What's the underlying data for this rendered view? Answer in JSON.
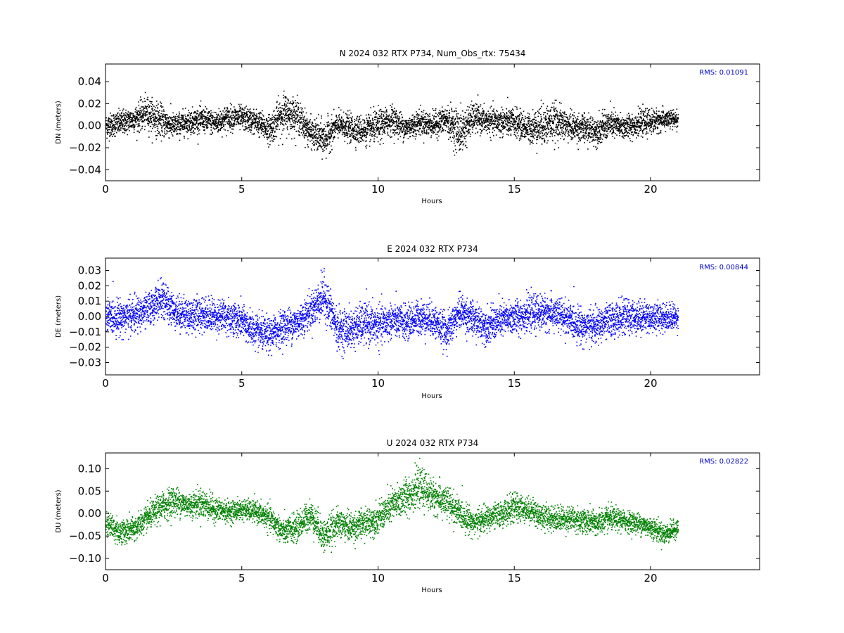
{
  "chart_data": [
    {
      "type": "scatter",
      "title": "N 2024 032 RTX  P734, Num_Obs_rtx: 75434",
      "xlabel": "Hours",
      "ylabel": "DN (meters)",
      "xlim": [
        0,
        24
      ],
      "ylim": [
        -0.05,
        0.056
      ],
      "xticks": [
        0,
        5,
        10,
        15,
        20
      ],
      "yticks": [
        -0.04,
        -0.02,
        0.0,
        0.02,
        0.04
      ],
      "ytick_labels": [
        "−0.04",
        "−0.02",
        "0.00",
        "0.02",
        "0.04"
      ],
      "color": "#000000",
      "rms_label": "RMS:  0.01091",
      "rms_color": "#0000cc",
      "grid": false,
      "series": [
        {
          "x": [
            0,
            0.5,
            1.0,
            1.5,
            2.0,
            2.5,
            3.0,
            3.5,
            4.0,
            4.5,
            5.0,
            5.5,
            6.0,
            6.5,
            7.0,
            7.5,
            8.0,
            8.5,
            9.0,
            9.5,
            10.0,
            10.5,
            11.0,
            11.5,
            12.0,
            12.5,
            13.0,
            13.5,
            14.0,
            14.5,
            15.0,
            15.5,
            16.0,
            16.5,
            17.0,
            17.5,
            18.0,
            18.5,
            19.0,
            19.5,
            20.0,
            20.5,
            21.0
          ],
          "center": [
            0.0,
            0.003,
            0.006,
            0.012,
            0.005,
            0.0,
            0.004,
            0.006,
            0.003,
            0.008,
            0.007,
            0.004,
            -0.003,
            0.012,
            0.01,
            -0.006,
            -0.012,
            0.001,
            -0.002,
            -0.004,
            0.0,
            0.006,
            -0.002,
            0.004,
            0.001,
            0.006,
            -0.006,
            0.008,
            0.004,
            0.004,
            0.003,
            -0.002,
            0.001,
            0.004,
            0.0,
            -0.002,
            -0.004,
            0.002,
            -0.001,
            0.002,
            0.004,
            0.006,
            0.006
          ],
          "spread": [
            0.012,
            0.012,
            0.012,
            0.016,
            0.016,
            0.012,
            0.012,
            0.012,
            0.012,
            0.012,
            0.012,
            0.012,
            0.014,
            0.02,
            0.016,
            0.014,
            0.018,
            0.012,
            0.014,
            0.014,
            0.016,
            0.014,
            0.012,
            0.012,
            0.012,
            0.014,
            0.022,
            0.014,
            0.012,
            0.014,
            0.014,
            0.014,
            0.02,
            0.018,
            0.014,
            0.014,
            0.014,
            0.014,
            0.012,
            0.012,
            0.012,
            0.01,
            0.008
          ]
        }
      ]
    },
    {
      "type": "scatter",
      "title": "E 2024 032 RTX  P734",
      "xlabel": "Hours",
      "ylabel": "DE (meters)",
      "xlim": [
        0,
        24
      ],
      "ylim": [
        -0.038,
        0.038
      ],
      "xticks": [
        0,
        5,
        10,
        15,
        20
      ],
      "yticks": [
        -0.03,
        -0.02,
        -0.01,
        0.0,
        0.01,
        0.02,
        0.03
      ],
      "ytick_labels": [
        "−0.03",
        "−0.02",
        "−0.01",
        "0.00",
        "0.01",
        "0.02",
        "0.03"
      ],
      "color": "#0000ff",
      "rms_label": "RMS:  0.00844",
      "rms_color": "#0000cc",
      "grid": false,
      "series": [
        {
          "x": [
            0,
            0.5,
            1.0,
            1.5,
            2.0,
            2.5,
            3.0,
            3.5,
            4.0,
            4.5,
            5.0,
            5.5,
            6.0,
            6.5,
            7.0,
            7.5,
            8.0,
            8.5,
            9.0,
            9.5,
            10.0,
            10.5,
            11.0,
            11.5,
            12.0,
            12.5,
            13.0,
            13.5,
            14.0,
            14.5,
            15.0,
            15.5,
            16.0,
            16.5,
            17.0,
            17.5,
            18.0,
            18.5,
            19.0,
            19.5,
            20.0,
            20.5,
            21.0
          ],
          "center": [
            0.0,
            0.0,
            0.001,
            0.004,
            0.012,
            0.004,
            0.001,
            0.002,
            0.001,
            0.0,
            -0.003,
            -0.01,
            -0.012,
            -0.006,
            -0.004,
            0.004,
            0.014,
            -0.008,
            -0.008,
            -0.004,
            -0.006,
            -0.002,
            -0.004,
            0.0,
            -0.002,
            -0.01,
            0.004,
            -0.002,
            -0.006,
            -0.002,
            0.0,
            0.002,
            0.003,
            0.002,
            -0.002,
            -0.006,
            -0.006,
            -0.002,
            0.0,
            0.0,
            0.0,
            0.0,
            0.0
          ],
          "spread": [
            0.012,
            0.012,
            0.012,
            0.012,
            0.012,
            0.012,
            0.012,
            0.012,
            0.012,
            0.012,
            0.012,
            0.012,
            0.012,
            0.012,
            0.012,
            0.012,
            0.016,
            0.014,
            0.014,
            0.014,
            0.014,
            0.012,
            0.012,
            0.012,
            0.012,
            0.012,
            0.012,
            0.012,
            0.012,
            0.012,
            0.012,
            0.012,
            0.012,
            0.012,
            0.012,
            0.012,
            0.012,
            0.012,
            0.012,
            0.012,
            0.01,
            0.01,
            0.009
          ]
        }
      ]
    },
    {
      "type": "scatter",
      "title": "U 2024 032 RTX  P734",
      "xlabel": "Hours",
      "ylabel": "DU (meters)",
      "xlim": [
        0,
        24
      ],
      "ylim": [
        -0.125,
        0.135
      ],
      "xticks": [
        0,
        5,
        10,
        15,
        20
      ],
      "yticks": [
        -0.1,
        -0.05,
        0.0,
        0.05,
        0.1
      ],
      "ytick_labels": [
        "−0.10",
        "−0.05",
        "0.00",
        "0.05",
        "0.10"
      ],
      "color": "#008000",
      "rms_label": "RMS:  0.02822",
      "rms_color": "#0000cc",
      "grid": false,
      "series": [
        {
          "x": [
            0,
            0.5,
            1.0,
            1.5,
            2.0,
            2.5,
            3.0,
            3.5,
            4.0,
            4.5,
            5.0,
            5.5,
            6.0,
            6.5,
            7.0,
            7.5,
            8.0,
            8.5,
            9.0,
            9.5,
            10.0,
            10.5,
            11.0,
            11.5,
            12.0,
            12.5,
            13.0,
            13.5,
            14.0,
            14.5,
            15.0,
            15.5,
            16.0,
            16.5,
            17.0,
            17.5,
            18.0,
            18.5,
            19.0,
            19.5,
            20.0,
            20.5,
            21.0
          ],
          "center": [
            -0.02,
            -0.04,
            -0.035,
            -0.01,
            0.015,
            0.03,
            0.02,
            0.025,
            0.01,
            0.005,
            0.01,
            0.005,
            -0.01,
            -0.04,
            -0.03,
            0.0,
            -0.05,
            -0.02,
            -0.03,
            -0.02,
            -0.01,
            0.02,
            0.04,
            0.06,
            0.04,
            0.025,
            0.0,
            -0.02,
            -0.01,
            0.0,
            0.015,
            0.01,
            -0.005,
            -0.01,
            -0.01,
            -0.015,
            -0.02,
            -0.01,
            -0.015,
            -0.02,
            -0.03,
            -0.045,
            -0.03
          ],
          "spread": [
            0.03,
            0.03,
            0.03,
            0.03,
            0.035,
            0.035,
            0.03,
            0.035,
            0.03,
            0.025,
            0.025,
            0.025,
            0.03,
            0.03,
            0.035,
            0.035,
            0.04,
            0.035,
            0.035,
            0.035,
            0.035,
            0.04,
            0.045,
            0.045,
            0.04,
            0.04,
            0.035,
            0.03,
            0.03,
            0.03,
            0.035,
            0.03,
            0.03,
            0.03,
            0.03,
            0.03,
            0.03,
            0.03,
            0.025,
            0.025,
            0.025,
            0.025,
            0.02
          ]
        }
      ]
    }
  ]
}
